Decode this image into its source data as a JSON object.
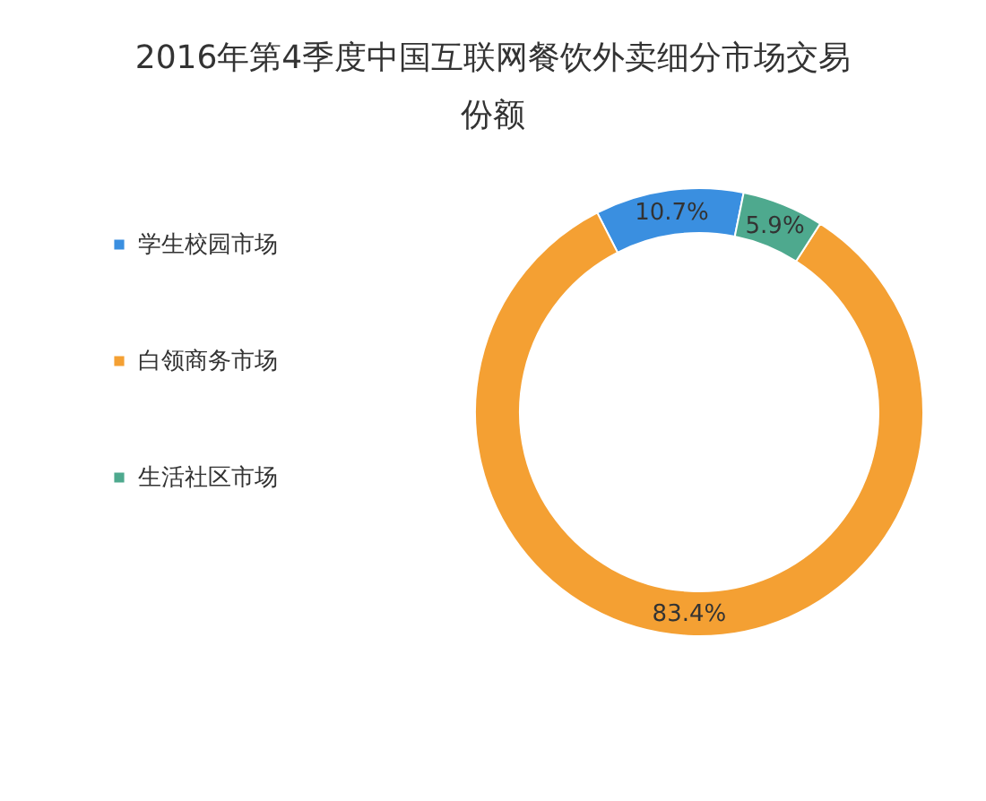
{
  "chart_data": {
    "type": "donut",
    "title": "2016年第4季度中国互联网餐饮外卖细分市场交易份额",
    "categories": [
      "学生校园市场",
      "白领商务市场",
      "生活社区市场"
    ],
    "values": [
      10.7,
      83.4,
      5.9
    ],
    "colors": [
      "#3a8fe0",
      "#f4a033",
      "#4ea98e"
    ],
    "value_labels": [
      "10.7%",
      "83.4%",
      "5.9%"
    ],
    "legend": "left"
  }
}
